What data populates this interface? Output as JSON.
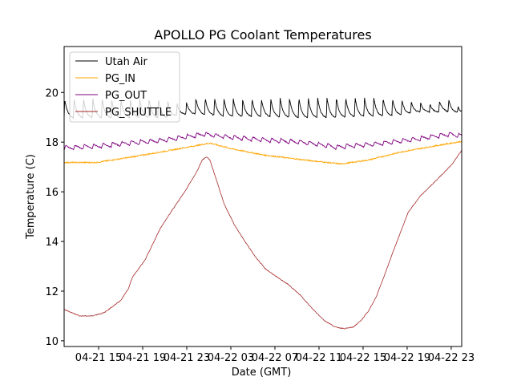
{
  "chart_data": {
    "type": "line",
    "title": "APOLLO PG Coolant Temperatures",
    "xlabel": "Date (GMT)",
    "ylabel": "Temperature (C)",
    "x_units": "hours since 04-21 12:00 GMT",
    "xlim": [
      -0.13,
      35.95
    ],
    "ylim": [
      9.77,
      21.85
    ],
    "grid": false,
    "legend_position": "upper-left",
    "x_ticks": [
      {
        "value": 3,
        "label": "04-21 15"
      },
      {
        "value": 7,
        "label": "04-21 19"
      },
      {
        "value": 11,
        "label": "04-21 23"
      },
      {
        "value": 15,
        "label": "04-22 03"
      },
      {
        "value": 19,
        "label": "04-22 07"
      },
      {
        "value": 23,
        "label": "04-22 11"
      },
      {
        "value": 27,
        "label": "04-22 15"
      },
      {
        "value": 31,
        "label": "04-22 19"
      },
      {
        "value": 35,
        "label": "04-22 23"
      }
    ],
    "y_ticks": [
      {
        "value": 10,
        "label": "10"
      },
      {
        "value": 12,
        "label": "12"
      },
      {
        "value": 14,
        "label": "14"
      },
      {
        "value": 16,
        "label": "16"
      },
      {
        "value": 18,
        "label": "18"
      },
      {
        "value": 20,
        "label": "20"
      }
    ],
    "series": [
      {
        "name": "Utah Air",
        "color": "#000000",
        "style": "sawtooth",
        "x": [
          -0.13,
          3,
          6,
          9,
          10.5,
          12,
          15,
          18,
          21,
          24,
          27,
          30,
          32,
          33.5,
          34.5,
          35.95
        ],
        "low": [
          18.95,
          18.95,
          18.95,
          18.95,
          19.1,
          19.1,
          19.0,
          19.0,
          18.95,
          18.95,
          19.0,
          19.05,
          19.2,
          19.2,
          19.2,
          19.2
        ],
        "high": [
          19.75,
          19.75,
          19.75,
          19.75,
          19.5,
          19.8,
          19.75,
          19.75,
          19.8,
          19.8,
          19.8,
          19.75,
          19.6,
          19.5,
          19.85,
          19.3
        ],
        "period_hours": 0.85
      },
      {
        "name": "PG_IN",
        "color": "#ffa500",
        "x": [
          -0.13,
          2.8,
          5.7,
          8.6,
          11.5,
          13.1,
          15.1,
          18,
          21.7,
          25,
          27.5,
          30.4,
          33.3,
          35.95
        ],
        "values": [
          17.18,
          17.18,
          17.38,
          17.6,
          17.83,
          17.96,
          17.73,
          17.48,
          17.28,
          17.12,
          17.28,
          17.6,
          17.83,
          18.03
        ]
      },
      {
        "name": "PG_OUT",
        "color": "#800080",
        "x": [
          -0.13,
          2.8,
          5.7,
          8.6,
          12.6,
          15.1,
          18,
          21.7,
          24.6,
          28.2,
          31.9,
          34.8,
          35.95
        ],
        "values": [
          17.77,
          17.83,
          17.96,
          18.06,
          18.32,
          18.19,
          18.09,
          17.99,
          17.8,
          17.93,
          18.12,
          18.32,
          18.25
        ]
      },
      {
        "name": "PG_SHUTTLE",
        "color": "#a52a2a",
        "x": [
          -0.13,
          1.3,
          2.4,
          3.5,
          4.2,
          5.0,
          5.7,
          6.1,
          7.2,
          7.9,
          8.6,
          9.7,
          10.8,
          11.9,
          12.4,
          12.8,
          13.1,
          13.7,
          14.4,
          15.3,
          16.2,
          17.2,
          18.1,
          19.1,
          20.2,
          21.3,
          22.4,
          23.5,
          24.5,
          25.3,
          26.1,
          26.8,
          27.5,
          28.2,
          28.9,
          29.7,
          30.4,
          31.1,
          32.2,
          33.3,
          34.4,
          35.1,
          35.95
        ],
        "values": [
          11.26,
          11.0,
          11.0,
          11.13,
          11.36,
          11.62,
          12.1,
          12.59,
          13.24,
          13.88,
          14.53,
          15.28,
          15.99,
          16.8,
          17.28,
          17.41,
          17.28,
          16.47,
          15.5,
          14.69,
          14.05,
          13.4,
          12.91,
          12.59,
          12.27,
          11.84,
          11.29,
          10.81,
          10.55,
          10.49,
          10.55,
          10.81,
          11.2,
          11.78,
          12.59,
          13.56,
          14.37,
          15.18,
          15.83,
          16.31,
          16.8,
          17.12,
          17.67
        ]
      }
    ]
  }
}
